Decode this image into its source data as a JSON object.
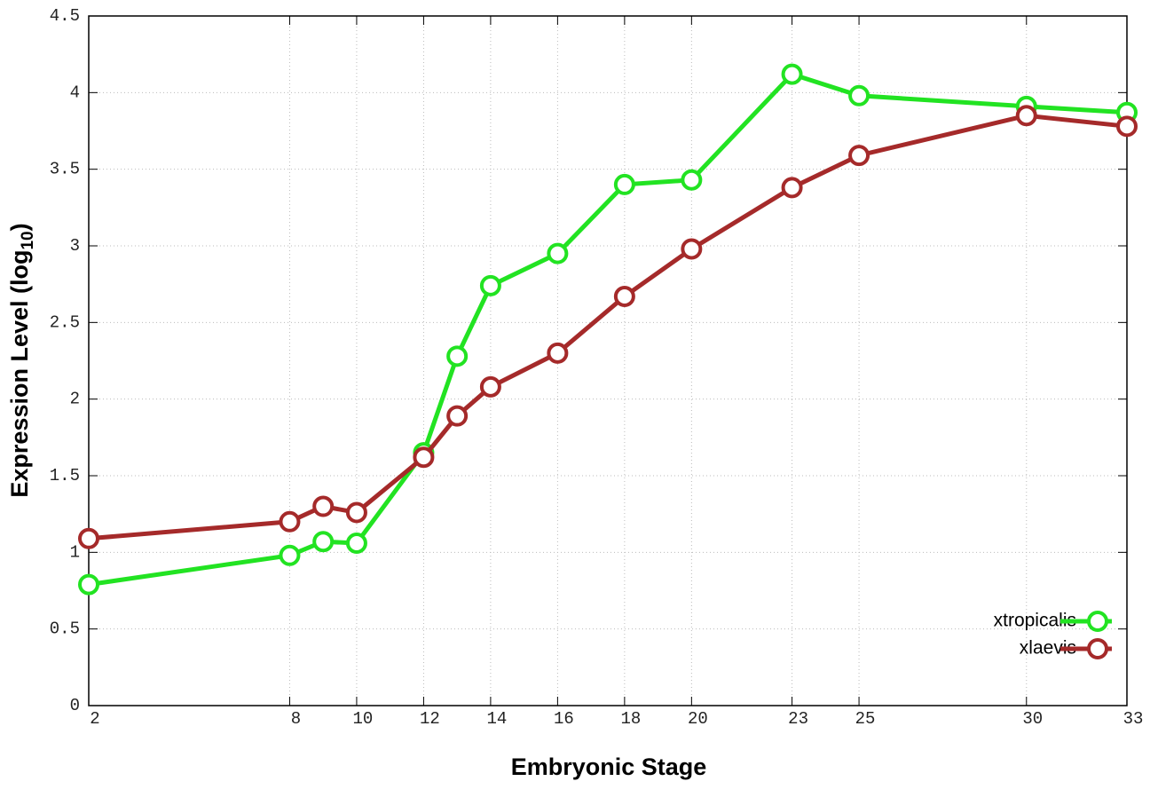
{
  "chart_data": {
    "type": "line",
    "xlabel": "Embryonic Stage",
    "ylabel": [
      "Expression Level (log",
      "10",
      ")"
    ],
    "x": [
      2,
      8,
      9,
      10,
      12,
      13,
      14,
      16,
      18,
      20,
      23,
      25,
      30,
      33
    ],
    "series": [
      {
        "name": "xtropicalis",
        "color": "#22e322",
        "values": [
          0.79,
          0.98,
          1.07,
          1.06,
          1.65,
          2.28,
          2.74,
          2.95,
          3.4,
          3.43,
          4.12,
          3.98,
          3.91,
          3.87
        ]
      },
      {
        "name": "xlaevis",
        "color": "#a52a2a",
        "values": [
          1.09,
          1.2,
          1.3,
          1.26,
          1.62,
          1.89,
          2.08,
          2.3,
          2.67,
          2.98,
          3.38,
          3.59,
          3.85,
          3.78
        ]
      }
    ],
    "xlim": [
      2,
      33
    ],
    "xticks": [
      2,
      8,
      10,
      12,
      14,
      16,
      18,
      20,
      23,
      25,
      30,
      33
    ],
    "ylim": [
      0,
      4.5
    ],
    "yticks": [
      0,
      0.5,
      1,
      1.5,
      2,
      2.5,
      3,
      3.5,
      4,
      4.5
    ],
    "grid": true,
    "legend": "lower right"
  }
}
